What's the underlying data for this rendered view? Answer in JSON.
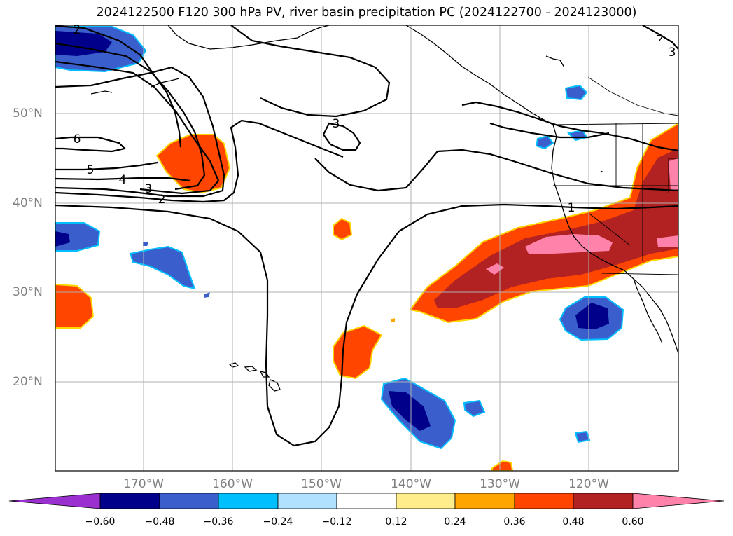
{
  "title": "2024122500 F120 300 hPa PV, river basin precipitation PC (2024122700 - 2024123000)",
  "lat_labels": [
    "50°N",
    "40°N",
    "30°N",
    "20°N"
  ],
  "lon_labels": [
    "170°W",
    "160°W",
    "150°W",
    "140°W",
    "130°W",
    "120°W"
  ],
  "contour_labels": [
    "2",
    "6",
    "5",
    "4",
    "3",
    "2",
    "3",
    "1",
    "3"
  ],
  "colorbar": {
    "ticks": [
      "−0.60",
      "−0.48",
      "−0.36",
      "−0.24",
      "−0.12",
      "0.12",
      "0.24",
      "0.36",
      "0.48",
      "0.60"
    ],
    "colors": [
      "#9b30d0",
      "#00008b",
      "#3a5fcd",
      "#00bfff",
      "#b0e2ff",
      "#ffffff",
      "#ffec8b",
      "#ffa500",
      "#ff4500",
      "#b22222",
      "#ff82ab"
    ]
  },
  "colors": {
    "coast": "#000000",
    "grid": "#b0b0b0",
    "label_gray": "#7f7f7f"
  }
}
